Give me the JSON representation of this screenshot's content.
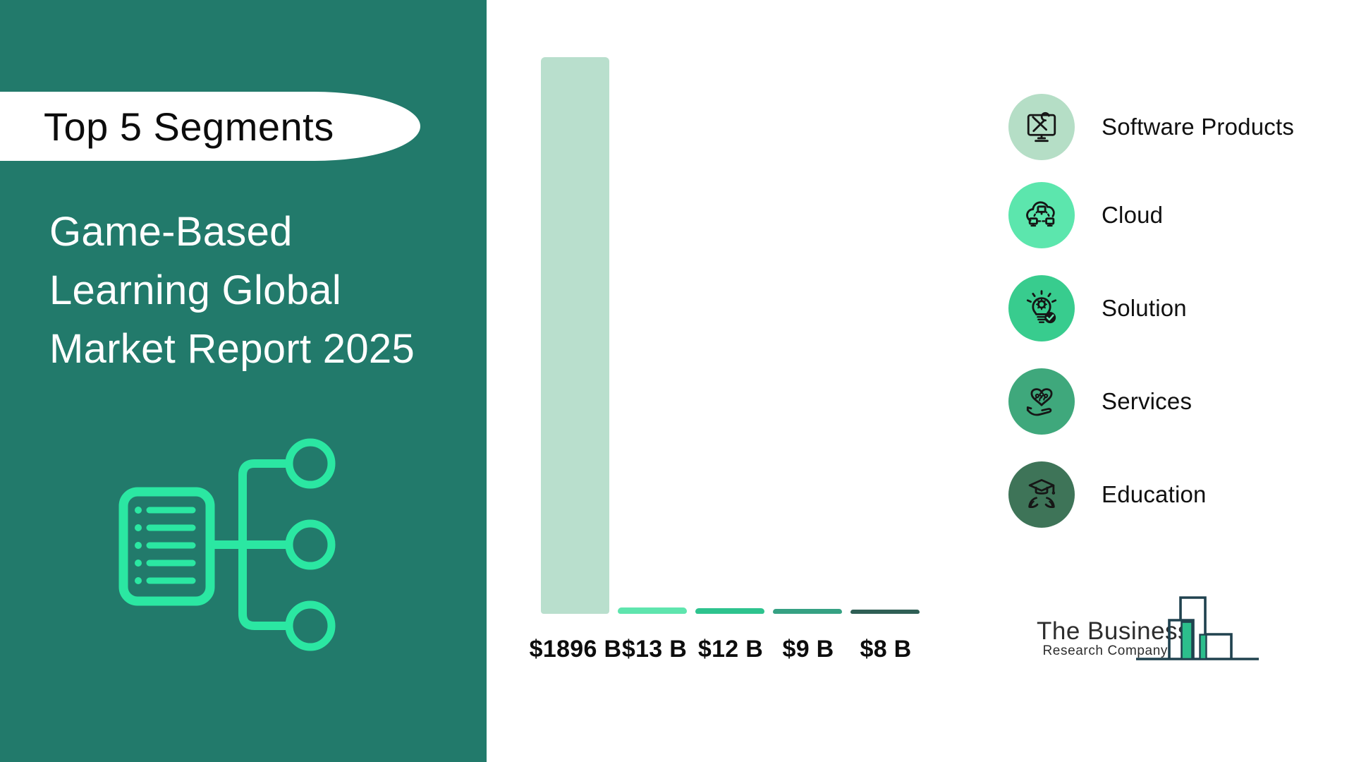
{
  "sidebar": {
    "bg_color": "#227A6B",
    "badge_label": "Top 5 Segments",
    "title_lines": [
      "Game-Based",
      "Learning Global",
      "Market Report 2025"
    ],
    "icon": "document-mindmap-icon",
    "icon_color": "#2BE7A2"
  },
  "chart_data": {
    "type": "bar",
    "title": "Top 5 Segments",
    "subtitle": "Game-Based Learning Global Market Report 2025",
    "unit": "USD billion",
    "categories": [
      "Software Products",
      "Cloud",
      "Solution",
      "Services",
      "Education"
    ],
    "values": [
      1896,
      13,
      12,
      9,
      8
    ],
    "value_labels": [
      "$1896 B",
      "$13 B",
      "$12 B",
      "$9 B",
      "$8 B"
    ],
    "bar_colors": [
      "#B9DFCD",
      "#5FE5AE",
      "#2EC38E",
      "#36A183",
      "#2F5F55"
    ],
    "ylim": [
      0,
      1896
    ],
    "grid": false,
    "axis_lines": false,
    "value_label_position": "below-bar",
    "legend_position": "right"
  },
  "legend": {
    "items": [
      {
        "label": "Software Products",
        "icon": "monitor-tools-icon",
        "circle_color": "#B5DEC6"
      },
      {
        "label": "Cloud",
        "icon": "cloud-network-icon",
        "circle_color": "#5CE6AD"
      },
      {
        "label": "Solution",
        "icon": "lightbulb-gear-check-icon",
        "circle_color": "#38CC8E"
      },
      {
        "label": "Services",
        "icon": "hand-heart-people-icon",
        "circle_color": "#3FA87C"
      },
      {
        "label": "Education",
        "icon": "hands-graduation-cap-icon",
        "circle_color": "#3E7458"
      }
    ]
  },
  "logo": {
    "name_line1": "The Business",
    "name_line2": "Research Company",
    "chart_outline_color": "#20424F",
    "chart_accent_color": "#2CBE8C"
  }
}
